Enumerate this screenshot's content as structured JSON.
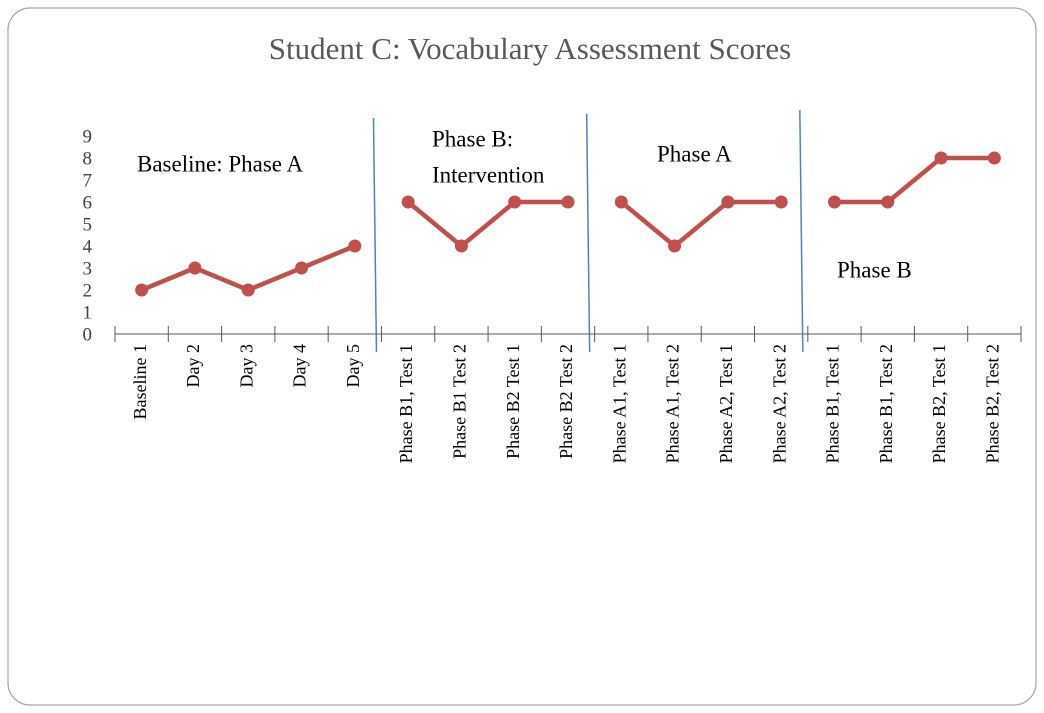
{
  "chart_data": {
    "type": "line",
    "title": "Student C: Vocabulary Assessment Scores",
    "categories": [
      "Baseline 1",
      "Day 2",
      "Day 3",
      "Day 4",
      "Day 5",
      "Phase B1, Test 1",
      "Phase B1 Test 2",
      "Phase B2 Test 1",
      "Phase B2 Test 2",
      "Phase A1, Test 1",
      "Phase A1, Test 2",
      "Phase A2, Test 1",
      "Phase A2, Test 2",
      "Phase B1, Test 1",
      "Phase B1, Test 2",
      "Phase B2, Test 1",
      "Phase B2, Test 2"
    ],
    "series": [
      {
        "color": "#c0504d",
        "values": [
          2,
          3,
          2,
          3,
          4,
          null,
          null,
          null,
          null,
          null,
          null,
          null,
          null,
          null,
          null,
          null,
          null
        ]
      },
      {
        "color": "#c0504d",
        "values": [
          null,
          null,
          null,
          null,
          null,
          6,
          4,
          6,
          6,
          null,
          null,
          null,
          null,
          null,
          null,
          null,
          null
        ]
      },
      {
        "color": "#c0504d",
        "values": [
          null,
          null,
          null,
          null,
          null,
          null,
          null,
          null,
          null,
          6,
          4,
          6,
          6,
          null,
          null,
          null,
          null
        ]
      },
      {
        "color": "#c0504d",
        "values": [
          null,
          null,
          null,
          null,
          null,
          null,
          null,
          null,
          null,
          null,
          null,
          null,
          null,
          6,
          6,
          8,
          8
        ]
      }
    ],
    "annotations": [
      "Baseline: Phase A",
      "Phase B:",
      "Intervention",
      "Phase A",
      "Phase B"
    ],
    "phase_line_color": "#4f81bd",
    "ylim": [
      0,
      9
    ],
    "yticks": [
      0,
      1,
      2,
      3,
      4,
      5,
      6,
      7,
      8,
      9
    ],
    "grid": false
  }
}
